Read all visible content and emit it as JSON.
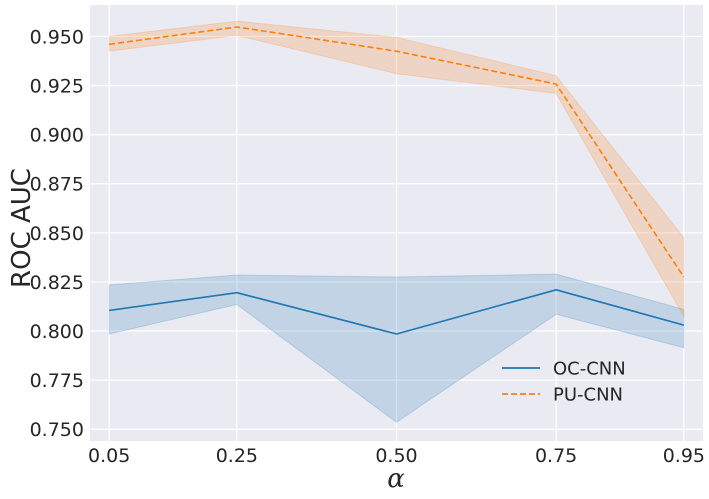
{
  "chart_data": {
    "type": "line",
    "title": "",
    "xlabel": "α",
    "ylabel": "ROC AUC",
    "x_categories": [
      "0.05",
      "0.25",
      "0.50",
      "0.75",
      "0.95"
    ],
    "x": [
      0.05,
      0.25,
      0.5,
      0.75,
      0.95
    ],
    "xlim": [
      0.02,
      0.98
    ],
    "ylim": [
      0.744,
      0.966
    ],
    "yticks": [
      0.75,
      0.775,
      0.8,
      0.825,
      0.85,
      0.875,
      0.9,
      0.925,
      0.95
    ],
    "ytick_labels": [
      "0.750",
      "0.775",
      "0.800",
      "0.825",
      "0.850",
      "0.875",
      "0.900",
      "0.925",
      "0.950"
    ],
    "grid": true,
    "legend_position": "lower-right",
    "series": [
      {
        "name": "OC-CNN",
        "color": "#1f77b4",
        "linestyle": "solid",
        "values": [
          0.8105,
          0.8195,
          0.7985,
          0.821,
          0.803
        ],
        "lower": [
          0.7985,
          0.8135,
          0.7535,
          0.8085,
          0.7915
        ],
        "upper": [
          0.8235,
          0.8285,
          0.8275,
          0.829,
          0.811
        ]
      },
      {
        "name": "PU-CNN",
        "color": "#ff7f0e",
        "linestyle": "dashed",
        "values": [
          0.946,
          0.9548,
          0.9425,
          0.9258,
          0.8275
        ],
        "lower": [
          0.9425,
          0.9505,
          0.931,
          0.921,
          0.8075
        ],
        "upper": [
          0.95,
          0.9578,
          0.9495,
          0.93,
          0.8475
        ]
      }
    ]
  },
  "colors": {
    "plot_background": "#eaeaf2",
    "grid": "#ffffff",
    "text": "#262626"
  }
}
